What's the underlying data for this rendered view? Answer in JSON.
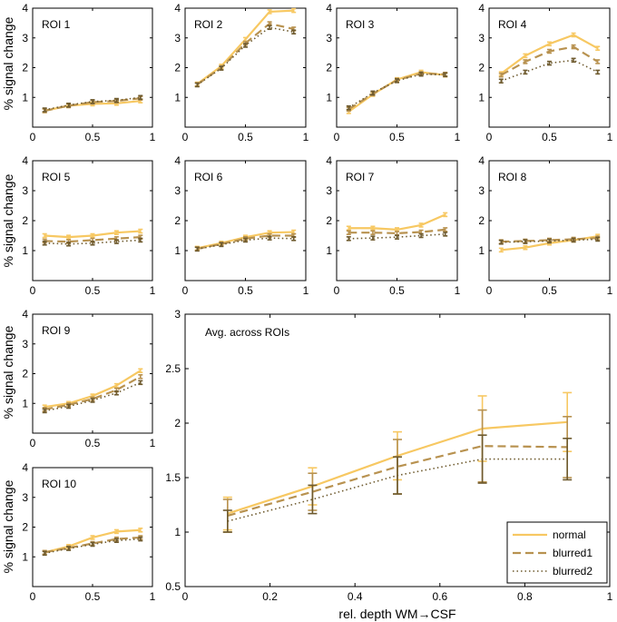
{
  "colors": {
    "normal": "#F7C862",
    "blurred1": "#B89250",
    "blurred2": "#6E5A2E",
    "axis": "#000000"
  },
  "ylabel_text": "% signal change",
  "xlabel_text": "rel. depth WM→CSF",
  "chart_data": [
    {
      "type": "line",
      "title": "ROI 1",
      "x": [
        0.1,
        0.3,
        0.5,
        0.7,
        0.9
      ],
      "xlim": [
        0,
        1
      ],
      "ylim": [
        0,
        4
      ],
      "xticks": [
        0,
        0.5,
        1
      ],
      "xtick_labels": [
        "0",
        "0.5",
        "1"
      ],
      "yticks": [
        1,
        2,
        3,
        4
      ],
      "ytick_labels": [
        "1",
        "2",
        "3",
        "4"
      ],
      "series": [
        {
          "name": "normal",
          "values": [
            0.55,
            0.72,
            0.78,
            0.8,
            0.88
          ]
        },
        {
          "name": "blurred1",
          "values": [
            0.55,
            0.72,
            0.84,
            0.88,
            0.97
          ]
        },
        {
          "name": "blurred2",
          "values": [
            0.58,
            0.74,
            0.86,
            0.9,
            1.0
          ]
        }
      ]
    },
    {
      "type": "line",
      "title": "ROI 2",
      "x": [
        0.1,
        0.3,
        0.5,
        0.7,
        0.9
      ],
      "xlim": [
        0,
        1
      ],
      "ylim": [
        0,
        4
      ],
      "xticks": [
        0,
        0.5,
        1
      ],
      "xtick_labels": [
        "0",
        "0.5",
        "1"
      ],
      "yticks": [
        1,
        2,
        3,
        4
      ],
      "ytick_labels": [
        "1",
        "2",
        "3",
        "4"
      ],
      "series": [
        {
          "name": "normal",
          "values": [
            1.45,
            2.05,
            2.95,
            3.88,
            3.92
          ]
        },
        {
          "name": "blurred1",
          "values": [
            1.43,
            2.0,
            2.82,
            3.48,
            3.3
          ]
        },
        {
          "name": "blurred2",
          "values": [
            1.42,
            1.98,
            2.75,
            3.35,
            3.2
          ]
        }
      ]
    },
    {
      "type": "line",
      "title": "ROI 3",
      "x": [
        0.1,
        0.3,
        0.5,
        0.7,
        0.9
      ],
      "xlim": [
        0,
        1
      ],
      "ylim": [
        0,
        4
      ],
      "xticks": [
        0,
        0.5,
        1
      ],
      "xtick_labels": [
        "0",
        "0.5",
        "1"
      ],
      "yticks": [
        1,
        2,
        3,
        4
      ],
      "ytick_labels": [
        "1",
        "2",
        "3",
        "4"
      ],
      "series": [
        {
          "name": "normal",
          "values": [
            0.52,
            1.1,
            1.6,
            1.85,
            1.75
          ]
        },
        {
          "name": "blurred1",
          "values": [
            0.6,
            1.12,
            1.58,
            1.8,
            1.78
          ]
        },
        {
          "name": "blurred2",
          "values": [
            0.65,
            1.15,
            1.56,
            1.78,
            1.76
          ]
        }
      ]
    },
    {
      "type": "line",
      "title": "ROI 4",
      "x": [
        0.1,
        0.3,
        0.5,
        0.7,
        0.9
      ],
      "xlim": [
        0,
        1
      ],
      "ylim": [
        0,
        4
      ],
      "xticks": [
        0,
        0.5,
        1
      ],
      "xtick_labels": [
        "0",
        "0.5",
        "1"
      ],
      "yticks": [
        1,
        2,
        3,
        4
      ],
      "ytick_labels": [
        "1",
        "2",
        "3",
        "4"
      ],
      "series": [
        {
          "name": "normal",
          "values": [
            1.8,
            2.4,
            2.8,
            3.1,
            2.65
          ]
        },
        {
          "name": "blurred1",
          "values": [
            1.75,
            2.2,
            2.55,
            2.7,
            2.2
          ]
        },
        {
          "name": "blurred2",
          "values": [
            1.55,
            1.85,
            2.15,
            2.25,
            1.85
          ]
        }
      ]
    },
    {
      "type": "line",
      "title": "ROI 5",
      "x": [
        0.1,
        0.3,
        0.5,
        0.7,
        0.9
      ],
      "xlim": [
        0,
        1
      ],
      "ylim": [
        0,
        4
      ],
      "xticks": [
        0,
        0.5,
        1
      ],
      "xtick_labels": [
        "0",
        "0.5",
        "1"
      ],
      "yticks": [
        1,
        2,
        3,
        4
      ],
      "ytick_labels": [
        "1",
        "2",
        "3",
        "4"
      ],
      "series": [
        {
          "name": "normal",
          "values": [
            1.5,
            1.45,
            1.5,
            1.6,
            1.65
          ]
        },
        {
          "name": "blurred1",
          "values": [
            1.32,
            1.3,
            1.35,
            1.4,
            1.45
          ]
        },
        {
          "name": "blurred2",
          "values": [
            1.25,
            1.22,
            1.25,
            1.3,
            1.35
          ]
        }
      ]
    },
    {
      "type": "line",
      "title": "ROI 6",
      "x": [
        0.1,
        0.3,
        0.5,
        0.7,
        0.9
      ],
      "xlim": [
        0,
        1
      ],
      "ylim": [
        0,
        4
      ],
      "xticks": [
        0,
        0.5,
        1
      ],
      "xtick_labels": [
        "0",
        "0.5",
        "1"
      ],
      "yticks": [
        1,
        2,
        3,
        4
      ],
      "ytick_labels": [
        "1",
        "2",
        "3",
        "4"
      ],
      "series": [
        {
          "name": "normal",
          "values": [
            1.08,
            1.25,
            1.45,
            1.6,
            1.62
          ]
        },
        {
          "name": "blurred1",
          "values": [
            1.06,
            1.22,
            1.4,
            1.5,
            1.5
          ]
        },
        {
          "name": "blurred2",
          "values": [
            1.05,
            1.2,
            1.35,
            1.42,
            1.4
          ]
        }
      ]
    },
    {
      "type": "line",
      "title": "ROI 7",
      "x": [
        0.1,
        0.3,
        0.5,
        0.7,
        0.9
      ],
      "xlim": [
        0,
        1
      ],
      "ylim": [
        0,
        4
      ],
      "xticks": [
        0,
        0.5,
        1
      ],
      "xtick_labels": [
        "0",
        "0.5",
        "1"
      ],
      "yticks": [
        1,
        2,
        3,
        4
      ],
      "ytick_labels": [
        "1",
        "2",
        "3",
        "4"
      ],
      "series": [
        {
          "name": "normal",
          "values": [
            1.75,
            1.75,
            1.7,
            1.85,
            2.2
          ]
        },
        {
          "name": "blurred1",
          "values": [
            1.6,
            1.6,
            1.58,
            1.62,
            1.7
          ]
        },
        {
          "name": "blurred2",
          "values": [
            1.4,
            1.42,
            1.45,
            1.5,
            1.55
          ]
        }
      ]
    },
    {
      "type": "line",
      "title": "ROI 8",
      "x": [
        0.1,
        0.3,
        0.5,
        0.7,
        0.9
      ],
      "xlim": [
        0,
        1
      ],
      "ylim": [
        0,
        4
      ],
      "xticks": [
        0,
        0.5,
        1
      ],
      "xtick_labels": [
        "0",
        "0.5",
        "1"
      ],
      "yticks": [
        1,
        2,
        3,
        4
      ],
      "ytick_labels": [
        "1",
        "2",
        "3",
        "4"
      ],
      "series": [
        {
          "name": "normal",
          "values": [
            1.02,
            1.1,
            1.25,
            1.35,
            1.48
          ]
        },
        {
          "name": "blurred1",
          "values": [
            1.3,
            1.32,
            1.35,
            1.38,
            1.42
          ]
        },
        {
          "name": "blurred2",
          "values": [
            1.28,
            1.3,
            1.32,
            1.35,
            1.38
          ]
        }
      ]
    },
    {
      "type": "line",
      "title": "ROI 9",
      "x": [
        0.1,
        0.3,
        0.5,
        0.7,
        0.9
      ],
      "xlim": [
        0,
        1
      ],
      "ylim": [
        0,
        4
      ],
      "xticks": [
        0,
        0.5,
        1
      ],
      "xtick_labels": [
        "0",
        "0.5",
        "1"
      ],
      "yticks": [
        1,
        2,
        3,
        4
      ],
      "ytick_labels": [
        "1",
        "2",
        "3",
        "4"
      ],
      "series": [
        {
          "name": "normal",
          "values": [
            0.88,
            1.0,
            1.25,
            1.6,
            2.1
          ]
        },
        {
          "name": "blurred1",
          "values": [
            0.8,
            0.95,
            1.15,
            1.45,
            1.9
          ]
        },
        {
          "name": "blurred2",
          "values": [
            0.75,
            0.9,
            1.1,
            1.35,
            1.7
          ]
        }
      ]
    },
    {
      "type": "line",
      "title": "ROI 10",
      "x": [
        0.1,
        0.3,
        0.5,
        0.7,
        0.9
      ],
      "xlim": [
        0,
        1
      ],
      "ylim": [
        0,
        4
      ],
      "xticks": [
        0,
        0.5,
        1
      ],
      "xtick_labels": [
        "0",
        "0.5",
        "1"
      ],
      "yticks": [
        1,
        2,
        3,
        4
      ],
      "ytick_labels": [
        "1",
        "2",
        "3",
        "4"
      ],
      "series": [
        {
          "name": "normal",
          "values": [
            1.15,
            1.35,
            1.65,
            1.85,
            1.9
          ]
        },
        {
          "name": "blurred1",
          "values": [
            1.15,
            1.3,
            1.45,
            1.6,
            1.65
          ]
        },
        {
          "name": "blurred2",
          "values": [
            1.12,
            1.28,
            1.42,
            1.55,
            1.6
          ]
        }
      ]
    },
    {
      "type": "line",
      "title": "Avg. across ROIs",
      "xlabel": "rel. depth WM→CSF",
      "x": [
        0.1,
        0.3,
        0.5,
        0.7,
        0.9
      ],
      "xlim": [
        0,
        1
      ],
      "ylim": [
        0.5,
        3
      ],
      "xticks": [
        0,
        0.2,
        0.4,
        0.6,
        0.8,
        1
      ],
      "xtick_labels": [
        "0",
        "0.2",
        "0.4",
        "0.6",
        "0.8",
        "1"
      ],
      "yticks": [
        0.5,
        1,
        1.5,
        2,
        2.5,
        3
      ],
      "ytick_labels": [
        "0.5",
        "1",
        "1.5",
        "2",
        "2.5",
        "3"
      ],
      "legend": {
        "position": "bottom-right",
        "entries": [
          "normal",
          "blurred1",
          "blurred2"
        ]
      },
      "series": [
        {
          "name": "normal",
          "values": [
            1.17,
            1.42,
            1.7,
            1.95,
            2.01
          ],
          "err": [
            0.15,
            0.17,
            0.22,
            0.3,
            0.27
          ]
        },
        {
          "name": "blurred1",
          "values": [
            1.15,
            1.37,
            1.6,
            1.79,
            1.78
          ],
          "err": [
            0.15,
            0.17,
            0.25,
            0.33,
            0.28
          ]
        },
        {
          "name": "blurred2",
          "values": [
            1.1,
            1.3,
            1.52,
            1.67,
            1.67
          ],
          "err": [
            0.1,
            0.13,
            0.17,
            0.22,
            0.19
          ]
        }
      ]
    }
  ]
}
